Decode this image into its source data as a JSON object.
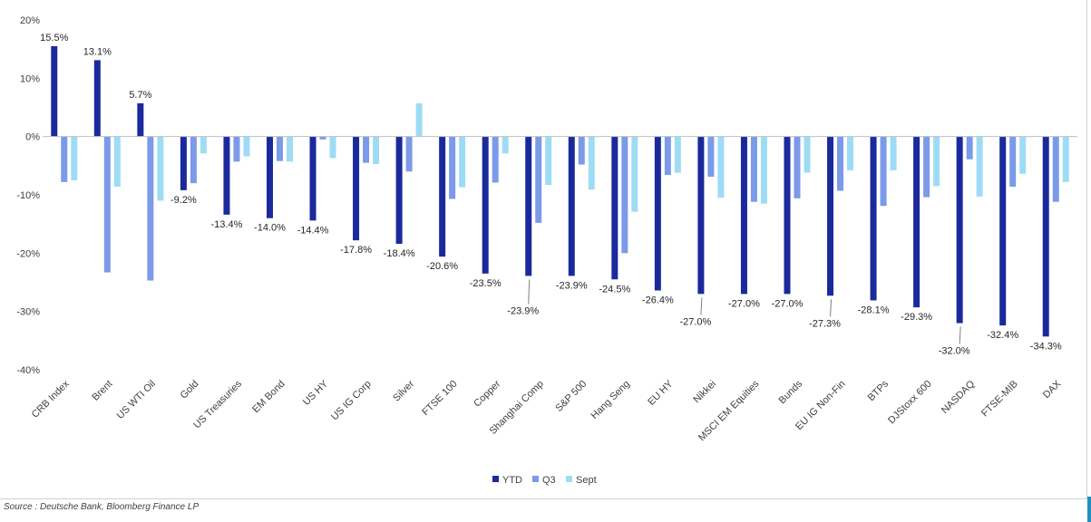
{
  "chart_data": {
    "type": "bar",
    "categories": [
      "CRB Index",
      "Brent",
      "US WTI Oil",
      "Gold",
      "US Treasuries",
      "EM Bond",
      "US HY",
      "US IG Corp",
      "Silver",
      "FTSE 100",
      "Copper",
      "Shanghai Comp",
      "S&P 500",
      "Hang Seng",
      "EU HY",
      "Nikkei",
      "MSCI EM Equities",
      "Bunds",
      "EU IG Non-Fin",
      "BTPs",
      "DJStoxx 600",
      "NASDAQ",
      "FTSE-MIB",
      "DAX"
    ],
    "series": [
      {
        "name": "YTD",
        "color": "#1a2a9c",
        "values": [
          15.5,
          13.1,
          5.7,
          -9.2,
          -13.4,
          -14.0,
          -14.4,
          -17.8,
          -18.4,
          -20.6,
          -23.5,
          -23.9,
          -23.9,
          -24.5,
          -26.4,
          -27.0,
          -27.0,
          -27.0,
          -27.3,
          -28.1,
          -29.3,
          -32.0,
          -32.4,
          -34.3
        ],
        "labels": [
          "15.5%",
          "13.1%",
          "5.7%",
          "-9.2%",
          "-13.4%",
          "-14.0%",
          "-14.4%",
          "-17.8%",
          "-18.4%",
          "-20.6%",
          "-23.5%",
          "-23.9%",
          "-23.9%",
          "-24.5%",
          "-26.4%",
          "-27.0%",
          "-27.0%",
          "-27.0%",
          "-27.3%",
          "-28.1%",
          "-29.3%",
          "-32.0%",
          "-32.4%",
          "-34.3%"
        ]
      },
      {
        "name": "Q3",
        "color": "#7b9ae8",
        "values": [
          -7.8,
          -23.3,
          -24.7,
          -8.0,
          -4.3,
          -4.2,
          -0.5,
          -4.5,
          -6.0,
          -10.7,
          -7.9,
          -14.8,
          -4.8,
          -20.0,
          -6.6,
          -6.9,
          -11.2,
          -10.6,
          -9.3,
          -11.9,
          -10.4,
          -3.9,
          -8.6,
          -11.2
        ]
      },
      {
        "name": "Sept",
        "color": "#9edcf5",
        "values": [
          -7.5,
          -8.6,
          -11.0,
          -2.9,
          -3.4,
          -4.3,
          -3.7,
          -4.7,
          5.7,
          -8.7,
          -2.9,
          -8.3,
          -9.1,
          -12.9,
          -6.2,
          -10.5,
          -11.5,
          -6.2,
          -5.8,
          -5.8,
          -8.5,
          -10.3,
          -6.4,
          -7.8
        ]
      }
    ],
    "ylim": [
      -40,
      20
    ],
    "yticks": [
      20,
      10,
      0,
      -10,
      -20,
      -30,
      -40
    ],
    "ytick_labels": [
      "20%",
      "10%",
      "0%",
      "-10%",
      "-20%",
      "-30%",
      "-40%"
    ],
    "legend_position": "bottom-center",
    "grid": false
  },
  "source": "Source : Deutsche Bank, Bloomberg Finance LP"
}
